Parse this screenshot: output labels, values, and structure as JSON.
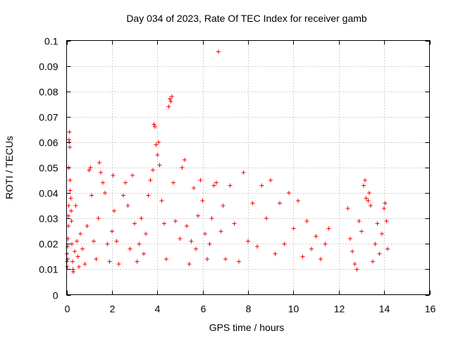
{
  "chart_data": {
    "type": "scatter",
    "title": "Day 034 of 2023, Rate Of TEC Index for receiver gamb",
    "xlabel": "GPS time / hours",
    "ylabel": "ROTI / TECUs",
    "xlim": [
      0,
      16
    ],
    "ylim": [
      0,
      0.1
    ],
    "x_ticks": [
      0,
      2,
      4,
      6,
      8,
      10,
      12,
      14,
      16
    ],
    "y_ticks": [
      0,
      0.01,
      0.02,
      0.03,
      0.04,
      0.05,
      0.06,
      0.07,
      0.08,
      0.09,
      0.1
    ],
    "x_tick_labels": [
      "0",
      "2",
      "4",
      "6",
      "8",
      "10",
      "12",
      "14",
      "16"
    ],
    "y_tick_labels": [
      "0",
      "0.01",
      "0.02",
      "0.03",
      "0.04",
      "0.05",
      "0.06",
      "0.07",
      "0.08",
      "0.09",
      "0.1"
    ],
    "grid": true,
    "marker": "+",
    "color": "#ff0000",
    "series": [
      {
        "name": "ROTI",
        "points": [
          [
            0.01,
            0.013
          ],
          [
            0.02,
            0.016
          ],
          [
            0.03,
            0.011
          ],
          [
            0.04,
            0.019
          ],
          [
            0.05,
            0.014
          ],
          [
            0.06,
            0.022
          ],
          [
            0.07,
            0.027
          ],
          [
            0.08,
            0.031
          ],
          [
            0.09,
            0.035
          ],
          [
            0.1,
            0.05
          ],
          [
            0.11,
            0.061
          ],
          [
            0.12,
            0.064
          ],
          [
            0.13,
            0.06
          ],
          [
            0.14,
            0.058
          ],
          [
            0.15,
            0.045
          ],
          [
            0.16,
            0.041
          ],
          [
            0.18,
            0.038
          ],
          [
            0.2,
            0.033
          ],
          [
            0.22,
            0.029
          ],
          [
            0.24,
            0.02
          ],
          [
            0.26,
            0.013
          ],
          [
            0.28,
            0.01
          ],
          [
            0.3,
            0.009
          ],
          [
            0.35,
            0.017
          ],
          [
            0.4,
            0.035
          ],
          [
            0.45,
            0.021
          ],
          [
            0.5,
            0.015
          ],
          [
            0.55,
            0.011
          ],
          [
            0.6,
            0.024
          ],
          [
            0.7,
            0.018
          ],
          [
            0.8,
            0.012
          ],
          [
            0.9,
            0.027
          ],
          [
            1.0,
            0.049
          ],
          [
            1.05,
            0.05
          ],
          [
            1.1,
            0.039
          ],
          [
            1.2,
            0.021
          ],
          [
            1.3,
            0.014
          ],
          [
            1.4,
            0.03
          ],
          [
            1.45,
            0.052
          ],
          [
            1.5,
            0.048
          ],
          [
            1.6,
            0.044
          ],
          [
            1.7,
            0.04
          ],
          [
            1.8,
            0.02
          ],
          [
            1.9,
            0.013
          ],
          [
            2.0,
            0.025
          ],
          [
            2.05,
            0.047
          ],
          [
            2.1,
            0.033
          ],
          [
            2.2,
            0.021
          ],
          [
            2.3,
            0.012
          ],
          [
            2.5,
            0.039
          ],
          [
            2.6,
            0.044
          ],
          [
            2.7,
            0.035
          ],
          [
            2.8,
            0.018
          ],
          [
            2.9,
            0.047
          ],
          [
            3.0,
            0.028
          ],
          [
            3.1,
            0.013
          ],
          [
            3.2,
            0.02
          ],
          [
            3.3,
            0.03
          ],
          [
            3.4,
            0.016
          ],
          [
            3.5,
            0.024
          ],
          [
            3.6,
            0.039
          ],
          [
            3.7,
            0.045
          ],
          [
            3.8,
            0.049
          ],
          [
            3.85,
            0.067
          ],
          [
            3.9,
            0.066
          ],
          [
            3.95,
            0.059
          ],
          [
            4.0,
            0.055
          ],
          [
            4.05,
            0.06
          ],
          [
            4.1,
            0.051
          ],
          [
            4.2,
            0.037
          ],
          [
            4.3,
            0.028
          ],
          [
            4.4,
            0.014
          ],
          [
            4.5,
            0.074
          ],
          [
            4.55,
            0.077
          ],
          [
            4.6,
            0.076
          ],
          [
            4.65,
            0.078
          ],
          [
            4.7,
            0.044
          ],
          [
            4.8,
            0.029
          ],
          [
            5.0,
            0.022
          ],
          [
            5.1,
            0.05
          ],
          [
            5.2,
            0.053
          ],
          [
            5.3,
            0.027
          ],
          [
            5.4,
            0.012
          ],
          [
            5.5,
            0.021
          ],
          [
            5.6,
            0.042
          ],
          [
            5.7,
            0.018
          ],
          [
            5.8,
            0.031
          ],
          [
            5.9,
            0.045
          ],
          [
            6.0,
            0.037
          ],
          [
            6.1,
            0.024
          ],
          [
            6.2,
            0.014
          ],
          [
            6.3,
            0.02
          ],
          [
            6.4,
            0.03
          ],
          [
            6.5,
            0.043
          ],
          [
            6.6,
            0.044
          ],
          [
            6.7,
            0.0955
          ],
          [
            6.8,
            0.025
          ],
          [
            6.9,
            0.035
          ],
          [
            7.0,
            0.014
          ],
          [
            7.2,
            0.043
          ],
          [
            7.4,
            0.028
          ],
          [
            7.6,
            0.013
          ],
          [
            7.8,
            0.048
          ],
          [
            8.0,
            0.021
          ],
          [
            8.2,
            0.036
          ],
          [
            8.4,
            0.019
          ],
          [
            8.6,
            0.043
          ],
          [
            8.8,
            0.03
          ],
          [
            9.0,
            0.045
          ],
          [
            9.2,
            0.016
          ],
          [
            9.4,
            0.036
          ],
          [
            9.6,
            0.02
          ],
          [
            9.8,
            0.04
          ],
          [
            10.0,
            0.026
          ],
          [
            10.2,
            0.037
          ],
          [
            10.4,
            0.015
          ],
          [
            10.6,
            0.029
          ],
          [
            10.8,
            0.018
          ],
          [
            11.0,
            0.023
          ],
          [
            11.2,
            0.014
          ],
          [
            11.4,
            0.02
          ],
          [
            11.55,
            0.026
          ],
          [
            12.4,
            0.034
          ],
          [
            12.5,
            0.022
          ],
          [
            12.6,
            0.017
          ],
          [
            12.7,
            0.012
          ],
          [
            12.8,
            0.01
          ],
          [
            12.9,
            0.029
          ],
          [
            13.0,
            0.025
          ],
          [
            13.1,
            0.043
          ],
          [
            13.15,
            0.045
          ],
          [
            13.2,
            0.038
          ],
          [
            13.3,
            0.037
          ],
          [
            13.35,
            0.04
          ],
          [
            13.4,
            0.035
          ],
          [
            13.5,
            0.013
          ],
          [
            13.6,
            0.02
          ],
          [
            13.7,
            0.028
          ],
          [
            13.8,
            0.016
          ],
          [
            13.9,
            0.024
          ],
          [
            14.0,
            0.034
          ],
          [
            14.05,
            0.036
          ],
          [
            14.1,
            0.029
          ],
          [
            14.15,
            0.018
          ]
        ]
      }
    ]
  }
}
